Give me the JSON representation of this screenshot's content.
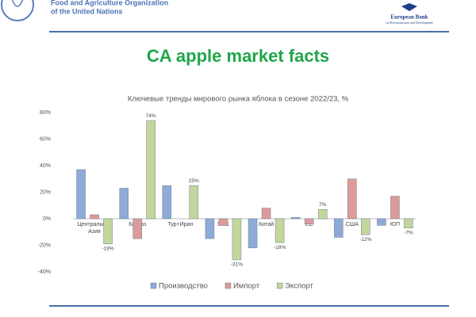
{
  "header": {
    "fao": [
      "Food and Agriculture Organization",
      "of the United Nations"
    ],
    "ebrd": [
      "European Bank",
      "for Reconstruction and Development"
    ],
    "title": "CA apple market facts"
  },
  "chart_data": {
    "type": "bar",
    "title": "Ключевые тренды мирового рынка яблока в сезоне 2022/23, %",
    "categories": [
      "Центральная Азия",
      "Кавказ",
      "Тур+Иран",
      "УМС",
      "Китай",
      "ЕС",
      "США",
      "ЮП"
    ],
    "series": [
      {
        "name": "Производство",
        "color": "#8eaad6",
        "values": [
          37,
          23,
          25,
          -15,
          -22,
          1,
          -14,
          -5
        ]
      },
      {
        "name": "Импорт",
        "color": "#dc9a98",
        "values": [
          3,
          -15,
          0,
          -5,
          8,
          -4,
          30,
          17
        ]
      },
      {
        "name": "Экспорт",
        "color": "#c3d69b",
        "values": [
          -19,
          74,
          25,
          -31,
          -18,
          7,
          -12,
          -7
        ],
        "value_labels": [
          "-19%",
          "74%",
          "25%",
          "-31%",
          "-18%",
          "7%",
          "-12%",
          "-7%"
        ]
      }
    ],
    "ylim": [
      -40,
      80
    ],
    "yticks": [
      {
        "value": -40,
        "label": "-40%"
      },
      {
        "value": -20,
        "label": "-20%"
      },
      {
        "value": 0,
        "label": "0%"
      },
      {
        "value": 20,
        "label": "20%"
      },
      {
        "value": 40,
        "label": "40%"
      },
      {
        "value": 60,
        "label": "60%"
      },
      {
        "value": 80,
        "label": "80%"
      }
    ],
    "grid": false,
    "legend": "bottom"
  }
}
